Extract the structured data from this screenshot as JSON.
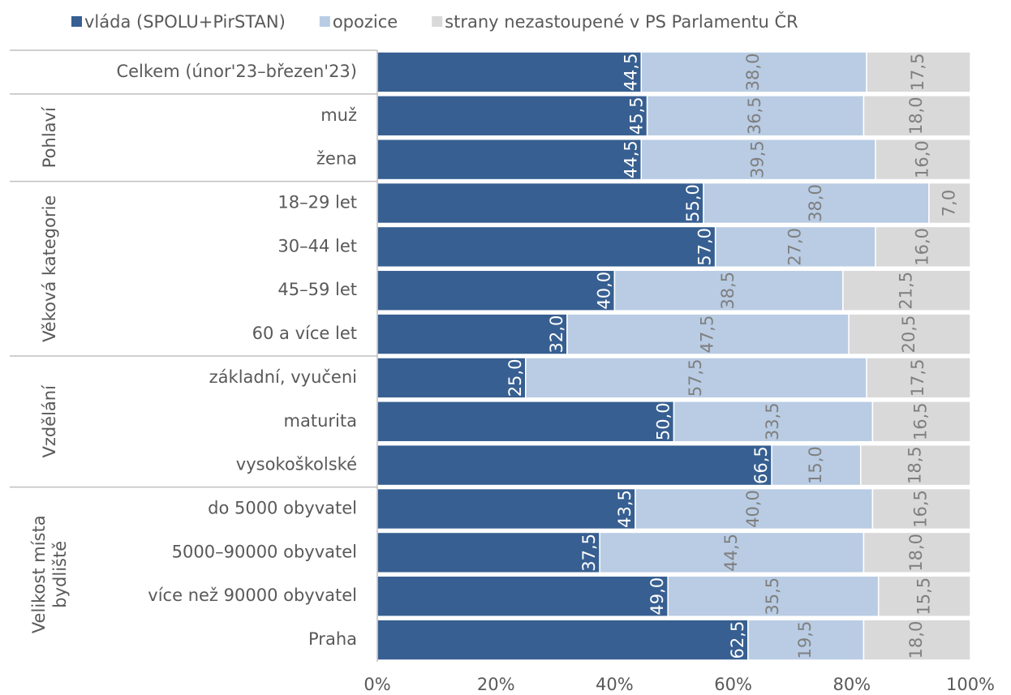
{
  "chart_data": {
    "type": "stacked-bar-horizontal",
    "groups": [
      {
        "categories": [
          "Celkem (únor'23–březen'23)"
        ]
      },
      {
        "name": [
          "Pohlaví"
        ],
        "categories": [
          "muž",
          "žena"
        ]
      },
      {
        "name": [
          "Věková kategorie"
        ],
        "categories": [
          "18–29 let",
          "30–44 let",
          "45–59 let",
          "60 a více let"
        ]
      },
      {
        "name": [
          "Vzdělání"
        ],
        "categories": [
          "základní, vyučeni",
          "maturita",
          "vysokoškolské"
        ]
      },
      {
        "name": [
          "Velikost místa",
          "bydliště"
        ],
        "categories": [
          "do 5000 obyvatel",
          "5000–90000 obyvatel",
          "více než 90000 obyvatel",
          "Praha"
        ]
      }
    ],
    "series": [
      {
        "name": "vláda (SPOLU+PirSTAN)",
        "color": "#375f91",
        "values": [
          44.5,
          45.5,
          44.5,
          55.0,
          57.0,
          40.0,
          32.0,
          25.0,
          50.0,
          66.5,
          43.5,
          37.5,
          49.0,
          62.5
        ],
        "value_labels": [
          "44,5",
          "45,5",
          "44,5",
          "55,0",
          "57,0",
          "40,0",
          "32,0",
          "25,0",
          "50,0",
          "66,5",
          "43,5",
          "37,5",
          "49,0",
          "62,5"
        ]
      },
      {
        "name": "opozice",
        "color": "#b9cce4",
        "values": [
          38.0,
          36.5,
          39.5,
          38.0,
          27.0,
          38.5,
          47.5,
          57.5,
          33.5,
          15.0,
          40.0,
          44.5,
          35.5,
          19.5
        ],
        "value_labels": [
          "38,0",
          "36,5",
          "39,5",
          "38,0",
          "27,0",
          "38,5",
          "47,5",
          "57,5",
          "33,5",
          "15,0",
          "40,0",
          "44,5",
          "35,5",
          "19,5"
        ]
      },
      {
        "name": "strany nezastoupené v PS Parlamentu ČR",
        "color": "#d9d9d9",
        "values": [
          17.5,
          18.0,
          16.0,
          7.0,
          16.0,
          21.5,
          20.5,
          17.5,
          16.5,
          18.5,
          16.5,
          18.0,
          15.5,
          18.0
        ],
        "value_labels": [
          "17,5",
          "18,0",
          "16,0",
          "7,0",
          "16,0",
          "21,5",
          "20,5",
          "17,5",
          "16,5",
          "18,5",
          "16,5",
          "18,0",
          "15,5",
          "18,0"
        ]
      }
    ],
    "xlim": [
      0,
      100
    ],
    "xticks": [
      {
        "value": 0,
        "label": "0%"
      },
      {
        "value": 20,
        "label": "20%"
      },
      {
        "value": 40,
        "label": "40%"
      },
      {
        "value": 60,
        "label": "60%"
      },
      {
        "value": 80,
        "label": "80%"
      },
      {
        "value": 100,
        "label": "100%"
      }
    ]
  }
}
